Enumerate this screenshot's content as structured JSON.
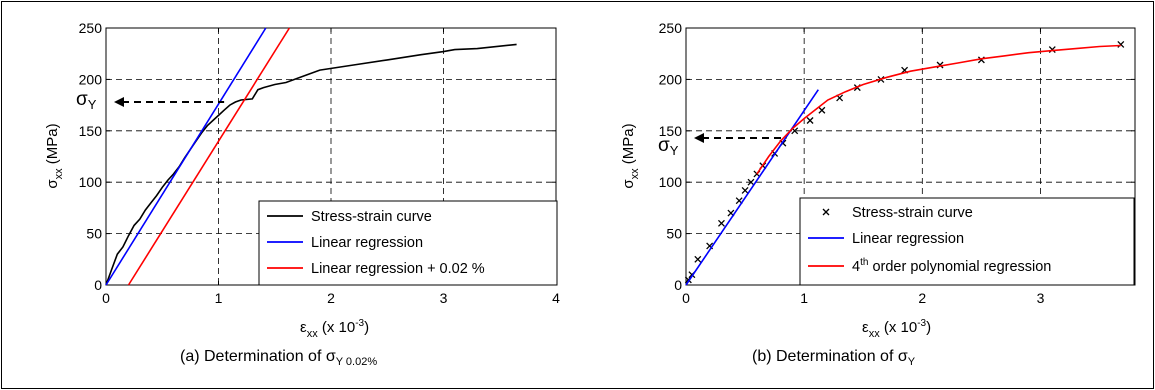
{
  "chart_data": [
    {
      "id": "a",
      "type": "line",
      "caption_main": "(a) Determination of σ",
      "caption_sub": "Y 0.02%",
      "xlabel_main": "ε",
      "xlabel_sub": "xx",
      "xlabel_rest": " (x 10",
      "xlabel_sup": "-3",
      "xlabel_close": ")",
      "ylabel_main": "σ",
      "ylabel_sub": "xx",
      "ylabel_rest": " (MPa)",
      "xlim": [
        0,
        4
      ],
      "ylim": [
        0,
        250
      ],
      "xticks": [
        "0",
        "1",
        "2",
        "3",
        "4"
      ],
      "yticks": [
        "0",
        "50",
        "100",
        "150",
        "200",
        "250"
      ],
      "grid": true,
      "legend_position": "bottom-right",
      "annotation": {
        "symbol": "σ",
        "sub": "Y",
        "y": 178,
        "x_end": 0.0
      },
      "series": [
        {
          "name": "Stress-strain curve",
          "color": "#000000",
          "style": "line",
          "x": [
            0,
            0.05,
            0.1,
            0.15,
            0.2,
            0.25,
            0.3,
            0.35,
            0.4,
            0.45,
            0.5,
            0.55,
            0.6,
            0.65,
            0.7,
            0.75,
            0.8,
            0.85,
            0.9,
            0.95,
            1.0,
            1.05,
            1.1,
            1.15,
            1.2,
            1.3,
            1.35,
            1.4,
            1.5,
            1.6,
            1.8,
            1.9,
            2.2,
            2.5,
            2.8,
            3.0,
            3.1,
            3.3,
            3.65
          ],
          "y": [
            0,
            15,
            30,
            37,
            48,
            58,
            64,
            73,
            80,
            87,
            95,
            102,
            108,
            115,
            124,
            132,
            140,
            148,
            155,
            160,
            165,
            170,
            175,
            178,
            180,
            181,
            190,
            192,
            195,
            197,
            205,
            209,
            214,
            219,
            224,
            227,
            229,
            230,
            234
          ]
        },
        {
          "name": "Linear regression",
          "color": "#0000ff",
          "style": "line",
          "x": [
            0,
            1.42
          ],
          "y": [
            0,
            250
          ]
        },
        {
          "name": "Linear regression + 0.02 %",
          "color": "#ff0000",
          "style": "line",
          "x": [
            0.2,
            1.63
          ],
          "y": [
            0,
            250
          ]
        }
      ]
    },
    {
      "id": "b",
      "type": "scatter",
      "caption_main": "(b) Determination of σ",
      "caption_sub": "Y",
      "xlabel_main": "ε",
      "xlabel_sub": "xx",
      "xlabel_rest": " (x 10",
      "xlabel_sup": "-3",
      "xlabel_close": ")",
      "ylabel_main": "σ",
      "ylabel_sub": "xx",
      "ylabel_rest": " (MPa)",
      "xlim": [
        0,
        3.8
      ],
      "ylim": [
        0,
        250
      ],
      "xticks": [
        "0",
        "1",
        "2",
        "3"
      ],
      "yticks": [
        "0",
        "50",
        "100",
        "150",
        "200",
        "250"
      ],
      "grid": true,
      "legend_position": "bottom-right",
      "annotation": {
        "symbol": "σ",
        "sub": "Y",
        "y": 143,
        "x_end": 0.85
      },
      "series": [
        {
          "name": "Stress-strain curve",
          "color": "#000000",
          "style": "marker-x",
          "x": [
            0.02,
            0.05,
            0.1,
            0.2,
            0.3,
            0.38,
            0.45,
            0.5,
            0.55,
            0.6,
            0.65,
            0.75,
            0.82,
            0.92,
            1.05,
            1.15,
            1.3,
            1.45,
            1.65,
            1.85,
            2.15,
            2.5,
            3.1,
            3.68
          ],
          "y": [
            5,
            10,
            25,
            38,
            60,
            70,
            82,
            92,
            100,
            108,
            116,
            128,
            138,
            150,
            160,
            170,
            182,
            192,
            200,
            209,
            214,
            219,
            229,
            234
          ]
        },
        {
          "name": "Linear regression",
          "color": "#0000ff",
          "style": "line",
          "x": [
            0,
            1.12
          ],
          "y": [
            0,
            190
          ]
        },
        {
          "name": "4th order polynomial regression",
          "name_sup": "th",
          "name_lead": "4",
          "name_rest": " order polynomial regression",
          "color": "#ff0000",
          "style": "line",
          "x": [
            0.6,
            0.7,
            0.8,
            0.9,
            1.0,
            1.1,
            1.2,
            1.35,
            1.5,
            1.7,
            1.9,
            2.1,
            2.3,
            2.5,
            2.7,
            2.9,
            3.1,
            3.3,
            3.5,
            3.68
          ],
          "y": [
            108,
            125,
            140,
            152,
            162,
            171,
            180,
            188,
            195,
            202,
            208,
            212,
            216,
            220,
            223,
            226,
            228,
            230,
            232,
            233
          ]
        }
      ]
    }
  ]
}
